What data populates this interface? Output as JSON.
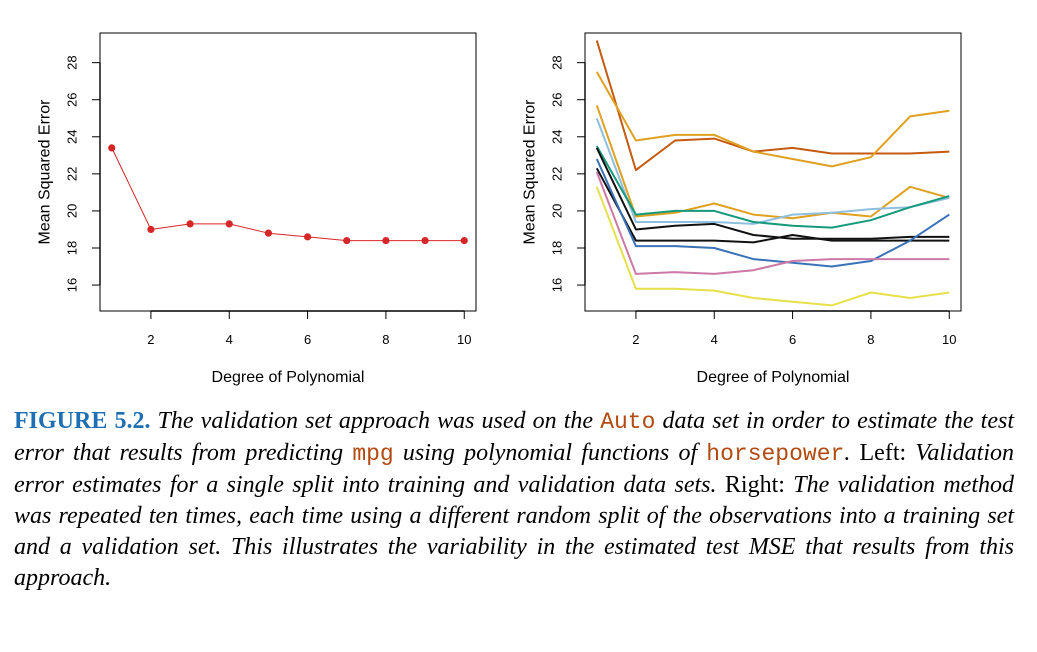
{
  "chart_data": [
    {
      "type": "line",
      "xlabel": "Degree of Polynomial",
      "ylabel": "Mean Squared Error",
      "xlim": [
        0.7,
        10.3
      ],
      "ylim": [
        14.6,
        29.6
      ],
      "xticks": [
        2,
        4,
        6,
        8,
        10
      ],
      "yticks": [
        16,
        18,
        20,
        22,
        24,
        26,
        28
      ],
      "grid": false,
      "x": [
        1,
        2,
        3,
        4,
        5,
        6,
        7,
        8,
        9,
        10
      ],
      "series": [
        {
          "color": "#d62728",
          "markers": true,
          "values": [
            23.4,
            19.0,
            19.3,
            19.3,
            18.8,
            18.6,
            18.4,
            18.4,
            18.4,
            18.4
          ]
        }
      ]
    },
    {
      "type": "line",
      "xlabel": "Degree of Polynomial",
      "ylabel": "Mean Squared Error",
      "xlim": [
        0.7,
        10.3
      ],
      "ylim": [
        14.6,
        29.6
      ],
      "xticks": [
        2,
        4,
        6,
        8,
        10
      ],
      "yticks": [
        16,
        18,
        20,
        22,
        24,
        26,
        28
      ],
      "grid": false,
      "x": [
        1,
        2,
        3,
        4,
        5,
        6,
        7,
        8,
        9,
        10
      ],
      "series": [
        {
          "color": "#c55a11",
          "values": [
            29.2,
            22.2,
            23.8,
            23.9,
            23.2,
            23.4,
            23.1,
            23.1,
            23.1,
            23.2
          ]
        },
        {
          "color": "#e0a020",
          "values": [
            27.5,
            23.8,
            24.1,
            24.1,
            23.2,
            22.8,
            22.4,
            22.9,
            25.1,
            25.4
          ]
        },
        {
          "color": "#e0a020",
          "values": [
            25.7,
            19.7,
            19.9,
            20.4,
            19.8,
            19.6,
            19.9,
            19.7,
            21.3,
            20.7
          ]
        },
        {
          "color": "#8fbfe0",
          "values": [
            25.0,
            19.4,
            19.4,
            19.4,
            19.3,
            19.8,
            19.9,
            20.1,
            20.2,
            20.7
          ]
        },
        {
          "color": "#169a7c",
          "values": [
            23.5,
            19.8,
            20.0,
            20.0,
            19.4,
            19.2,
            19.1,
            19.5,
            20.2,
            20.8
          ]
        },
        {
          "color": "#111111",
          "values": [
            23.4,
            19.0,
            19.2,
            19.3,
            18.7,
            18.5,
            18.5,
            18.5,
            18.6,
            18.6
          ]
        },
        {
          "color": "#111111",
          "values": [
            22.3,
            18.4,
            18.4,
            18.4,
            18.3,
            18.7,
            18.4,
            18.4,
            18.4,
            18.4
          ]
        },
        {
          "color": "#3a72b8",
          "values": [
            22.8,
            18.1,
            18.1,
            18.0,
            17.4,
            17.2,
            17.0,
            17.3,
            18.4,
            19.8
          ]
        },
        {
          "color": "#cc79a7",
          "values": [
            22.1,
            16.6,
            16.7,
            16.6,
            16.8,
            17.3,
            17.4,
            17.4,
            17.4,
            17.4
          ]
        },
        {
          "color": "#e6e04a",
          "values": [
            21.3,
            15.8,
            15.8,
            15.7,
            15.3,
            15.1,
            14.9,
            15.6,
            15.3,
            15.6
          ]
        }
      ]
    }
  ],
  "caption": {
    "label": "FIGURE 5.2.",
    "s1": " The validation set approach was used on the ",
    "c1": "Auto",
    "s2": " data set in order to estimate the test error that results from predicting ",
    "c2": "mpg",
    "s3": " using polynomial functions of ",
    "c3": "horsepower",
    "s4": ". ",
    "r1": "Left:",
    "s5": " Validation error estimates for a single split into training and validation data sets. ",
    "r2": "Right:",
    "s6": " The validation method was repeated ten times, each time using a different random split of the observations into a training set and a validation set. This illustrates the variability in the estimated test MSE that results from this approach."
  }
}
